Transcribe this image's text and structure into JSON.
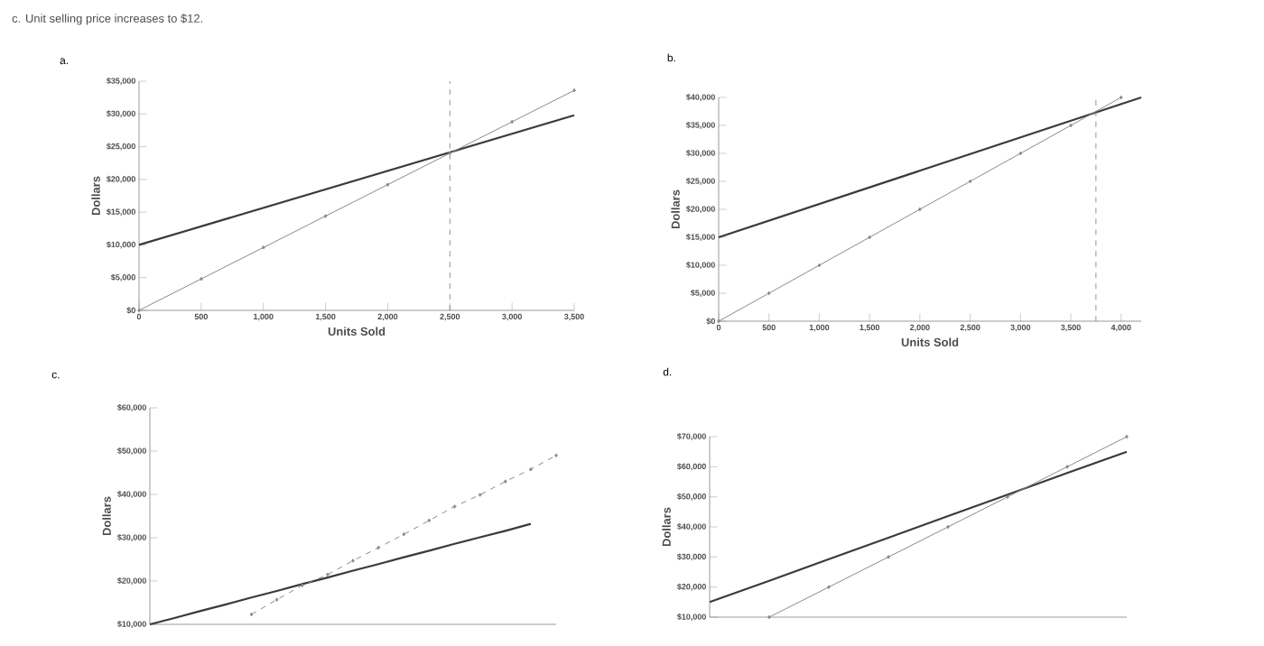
{
  "chart_data": [
    {
      "type": "line",
      "title": "a.",
      "annotations": [
        "c. Unit selling price increases to $12."
      ],
      "xlabel": "Units Sold",
      "ylabel": "Dollars",
      "xlim": [
        0,
        3500
      ],
      "ylim": [
        0,
        35000
      ],
      "xticks": [
        0,
        {
          "value": 500,
          "label": "500"
        },
        {
          "value": 1000,
          "label": "1,000"
        },
        {
          "value": 1500,
          "label": "1,500"
        },
        {
          "value": 2000,
          "label": "2,000"
        },
        {
          "value": 2500,
          "label": "2,500"
        },
        {
          "value": 3000,
          "label": "3,000"
        },
        {
          "value": 3500,
          "label": "3,500"
        }
      ],
      "yticks": [
        {
          "value": 0,
          "label": "$0"
        },
        {
          "value": 5000,
          "label": "$5,000"
        },
        {
          "value": 10000,
          "label": "$10,000"
        },
        {
          "value": 15000,
          "label": "$15,000"
        },
        {
          "value": 20000,
          "label": "$20,000"
        },
        {
          "value": 25000,
          "label": "$25,000"
        },
        {
          "value": 30000,
          "label": "$30,000"
        },
        {
          "value": 35000,
          "label": "$35,000"
        }
      ],
      "series": [
        {
          "color": "#3a3a3a",
          "x": [
            0,
            3500
          ],
          "values": [
            10000,
            29800
          ],
          "marker": "none"
        },
        {
          "color": "#8a8a8a",
          "x": [
            0,
            500,
            1000,
            1500,
            2000,
            2500,
            3000,
            3500
          ],
          "values": [
            0,
            4800,
            9600,
            14400,
            19200,
            24000,
            28800,
            33600
          ],
          "marker": "diamond"
        }
      ],
      "ref_lines": [
        {
          "axis": "x",
          "value": 2500,
          "line_style": "dashed",
          "color": "#777777"
        }
      ]
    },
    {
      "type": "line",
      "title": "b.",
      "xlabel": "Units Sold",
      "ylabel": "Dollars",
      "xlim": [
        0,
        4200
      ],
      "ylim": [
        0,
        40000
      ],
      "xticks": [
        0,
        500,
        {
          "value": 1000,
          "label": "1,000"
        },
        {
          "value": 1500,
          "label": "1,500"
        },
        {
          "value": 2000,
          "label": "2,000"
        },
        {
          "value": 2500,
          "label": "2,500"
        },
        {
          "value": 3000,
          "label": "3,000"
        },
        {
          "value": 3500,
          "label": "3,500"
        },
        {
          "value": 4000,
          "label": "4,000"
        }
      ],
      "yticks": [
        {
          "value": 0,
          "label": "$0"
        },
        {
          "value": 5000,
          "label": "$5,000"
        },
        {
          "value": 10000,
          "label": "$10,000"
        },
        {
          "value": 15000,
          "label": "$15,000"
        },
        {
          "value": 20000,
          "label": "$20,000"
        },
        {
          "value": 25000,
          "label": "$25,000"
        },
        {
          "value": 30000,
          "label": "$30,000"
        },
        {
          "value": 35000,
          "label": "$35,000"
        },
        {
          "value": 40000,
          "label": "$40,000"
        }
      ],
      "series": [
        {
          "color": "#3a3a3a",
          "x": [
            0,
            4200
          ],
          "values": [
            15000,
            40000
          ],
          "marker": "none"
        },
        {
          "color": "#8a8a8a",
          "x": [
            0,
            500,
            1000,
            1500,
            2000,
            2500,
            3000,
            3500,
            4000
          ],
          "values": [
            0,
            5000,
            10000,
            15000,
            20000,
            25000,
            30000,
            35000,
            40000
          ],
          "marker": "diamond"
        }
      ],
      "ref_lines": [
        {
          "axis": "x",
          "value": 3750,
          "line_style": "dashed",
          "color": "#777777"
        }
      ]
    },
    {
      "type": "line",
      "title": "c.",
      "ylabel": "Dollars",
      "tick_labels": "y",
      "categories": [
        null,
        null,
        null,
        null,
        null,
        null,
        null,
        null,
        null,
        null,
        null,
        null,
        null,
        null,
        null,
        null,
        null
      ],
      "ylim": [
        10000,
        60000
      ],
      "yticks": [
        {
          "value": 10000,
          "label": "$10,000"
        },
        {
          "value": 20000,
          "label": "$20,000"
        },
        {
          "value": 30000,
          "label": "$30,000"
        },
        {
          "value": 40000,
          "label": "$40,000"
        },
        {
          "value": 50000,
          "label": "$50,000"
        },
        {
          "value": 60000,
          "label": "$60,000"
        }
      ],
      "series": [
        {
          "color": "#3a3a3a",
          "values": [
            10000,
            11500,
            13100,
            14600,
            16200,
            17700,
            19300,
            20800,
            22400,
            23900,
            25500,
            27000,
            28600,
            30100,
            31600,
            33200,
            null
          ],
          "marker": "none"
        },
        {
          "color": "#8a8a8a",
          "values": [
            null,
            null,
            null,
            null,
            12300,
            15700,
            19000,
            21500,
            24700,
            27700,
            30800,
            34000,
            37200,
            39900,
            43000,
            45800,
            49000
          ],
          "marker": "diamond",
          "line_style": "dashed"
        }
      ]
    },
    {
      "type": "line",
      "title": "d.",
      "ylabel": "Dollars",
      "tick_labels": "y",
      "categories": [
        null,
        null,
        null,
        null,
        null,
        null,
        null,
        null
      ],
      "ylim": [
        10000,
        70000
      ],
      "yticks": [
        {
          "value": 10000,
          "label": "$10,000"
        },
        {
          "value": 20000,
          "label": "$20,000"
        },
        {
          "value": 30000,
          "label": "$30,000"
        },
        {
          "value": 40000,
          "label": "$40,000"
        },
        {
          "value": 50000,
          "label": "$50,000"
        },
        {
          "value": 60000,
          "label": "$60,000"
        },
        {
          "value": 70000,
          "label": "$70,000"
        }
      ],
      "series": [
        {
          "color": "#3a3a3a",
          "values": [
            15000,
            22100,
            29300,
            36400,
            43600,
            50700,
            57900,
            65000
          ],
          "marker": "none"
        },
        {
          "color": "#8a8a8a",
          "values": [
            null,
            10000,
            20000,
            30000,
            40000,
            50000,
            60000,
            70000
          ],
          "marker": "diamond"
        }
      ]
    }
  ]
}
